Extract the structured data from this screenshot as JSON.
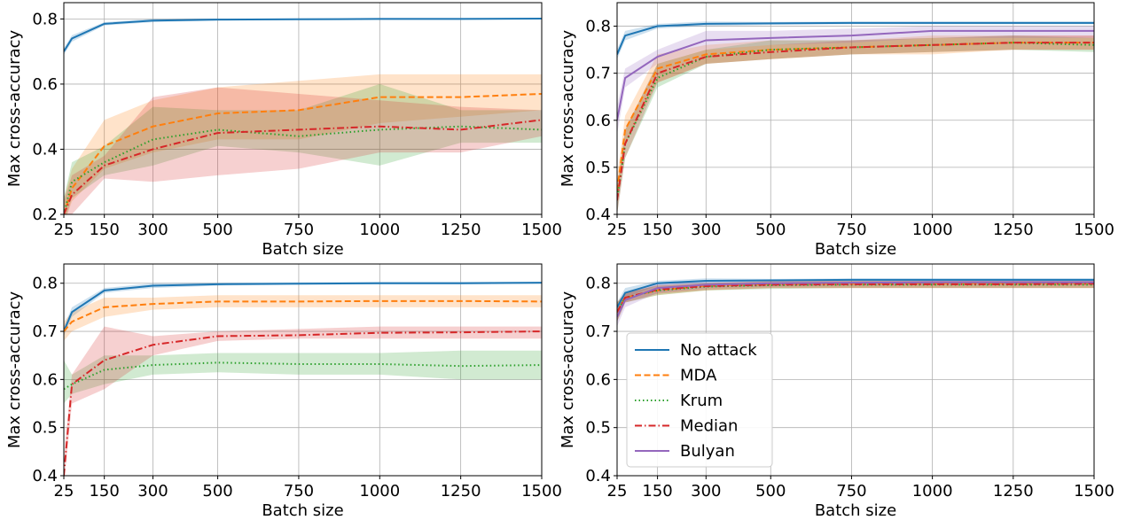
{
  "chart_data": [
    {
      "type": "line",
      "xlabel": "Batch size",
      "ylabel": "Max cross-accuracy",
      "xlim": [
        25,
        1500
      ],
      "ylim": [
        0.2,
        0.85
      ],
      "xticks": [
        25,
        150,
        300,
        500,
        750,
        1000,
        1250,
        1500
      ],
      "yticks": [
        0.2,
        0.4,
        0.6,
        0.8
      ],
      "ytick_labels": [
        "0.2",
        "0.4",
        "0.6",
        "0.8"
      ],
      "grid": true,
      "x": [
        25,
        50,
        150,
        300,
        500,
        750,
        1000,
        1250,
        1500
      ],
      "series": [
        {
          "name": "No attack",
          "values": [
            0.7,
            0.74,
            0.785,
            0.795,
            0.798,
            0.799,
            0.8,
            0.8,
            0.801
          ],
          "lower": [
            0.69,
            0.73,
            0.78,
            0.79,
            0.795,
            0.797,
            0.798,
            0.798,
            0.799
          ],
          "upper": [
            0.71,
            0.75,
            0.79,
            0.8,
            0.801,
            0.802,
            0.803,
            0.803,
            0.803
          ]
        },
        {
          "name": "MDA",
          "values": [
            0.2,
            0.28,
            0.41,
            0.47,
            0.51,
            0.52,
            0.56,
            0.56,
            0.57
          ],
          "lower": [
            0.17,
            0.24,
            0.34,
            0.39,
            0.43,
            0.43,
            0.48,
            0.5,
            0.52
          ],
          "upper": [
            0.25,
            0.34,
            0.49,
            0.55,
            0.59,
            0.61,
            0.63,
            0.63,
            0.63
          ]
        },
        {
          "name": "Krum",
          "values": [
            0.2,
            0.3,
            0.36,
            0.43,
            0.46,
            0.44,
            0.46,
            0.47,
            0.46
          ],
          "lower": [
            0.17,
            0.25,
            0.32,
            0.35,
            0.41,
            0.39,
            0.35,
            0.42,
            0.42
          ],
          "upper": [
            0.25,
            0.36,
            0.41,
            0.53,
            0.52,
            0.52,
            0.6,
            0.52,
            0.52
          ]
        },
        {
          "name": "Median",
          "values": [
            0.2,
            0.26,
            0.35,
            0.4,
            0.45,
            0.46,
            0.47,
            0.46,
            0.49
          ],
          "lower": [
            0.17,
            0.2,
            0.31,
            0.3,
            0.32,
            0.34,
            0.39,
            0.39,
            0.44
          ],
          "upper": [
            0.24,
            0.32,
            0.38,
            0.56,
            0.59,
            0.57,
            0.55,
            0.53,
            0.52
          ]
        }
      ]
    },
    {
      "type": "line",
      "xlabel": "Batch size",
      "ylabel": "Max cross-accuracy",
      "xlim": [
        25,
        1500
      ],
      "ylim": [
        0.4,
        0.85
      ],
      "xticks": [
        25,
        150,
        300,
        500,
        750,
        1000,
        1250,
        1500
      ],
      "yticks": [
        0.4,
        0.5,
        0.6,
        0.7,
        0.8
      ],
      "ytick_labels": [
        "0.4",
        "0.5",
        "0.6",
        "0.7",
        "0.8"
      ],
      "grid": true,
      "x": [
        25,
        50,
        150,
        300,
        500,
        750,
        1000,
        1250,
        1500
      ],
      "series": [
        {
          "name": "No attack",
          "values": [
            0.74,
            0.78,
            0.8,
            0.805,
            0.806,
            0.807,
            0.807,
            0.807,
            0.807
          ],
          "lower": [
            0.73,
            0.77,
            0.795,
            0.8,
            0.803,
            0.804,
            0.804,
            0.804,
            0.804
          ],
          "upper": [
            0.75,
            0.79,
            0.805,
            0.81,
            0.809,
            0.81,
            0.81,
            0.81,
            0.81
          ]
        },
        {
          "name": "MDA",
          "values": [
            0.45,
            0.58,
            0.71,
            0.74,
            0.75,
            0.755,
            0.76,
            0.765,
            0.765
          ],
          "lower": [
            0.42,
            0.55,
            0.68,
            0.72,
            0.73,
            0.74,
            0.74,
            0.75,
            0.75
          ],
          "upper": [
            0.48,
            0.61,
            0.74,
            0.76,
            0.77,
            0.77,
            0.78,
            0.78,
            0.78
          ]
        },
        {
          "name": "Krum",
          "values": [
            0.43,
            0.55,
            0.69,
            0.735,
            0.75,
            0.755,
            0.76,
            0.765,
            0.76
          ],
          "lower": [
            0.4,
            0.52,
            0.67,
            0.72,
            0.73,
            0.74,
            0.745,
            0.75,
            0.745
          ],
          "upper": [
            0.46,
            0.58,
            0.72,
            0.75,
            0.77,
            0.77,
            0.775,
            0.78,
            0.775
          ]
        },
        {
          "name": "Median",
          "values": [
            0.43,
            0.55,
            0.7,
            0.735,
            0.745,
            0.755,
            0.76,
            0.765,
            0.765
          ],
          "lower": [
            0.4,
            0.52,
            0.68,
            0.72,
            0.73,
            0.74,
            0.745,
            0.75,
            0.75
          ],
          "upper": [
            0.46,
            0.58,
            0.72,
            0.75,
            0.76,
            0.77,
            0.775,
            0.78,
            0.78
          ]
        },
        {
          "name": "Bulyan",
          "values": [
            0.6,
            0.69,
            0.735,
            0.77,
            0.775,
            0.78,
            0.79,
            0.79,
            0.79
          ],
          "lower": [
            0.57,
            0.67,
            0.72,
            0.75,
            0.76,
            0.765,
            0.775,
            0.775,
            0.775
          ],
          "upper": [
            0.63,
            0.71,
            0.75,
            0.79,
            0.79,
            0.795,
            0.8,
            0.8,
            0.8
          ]
        }
      ]
    },
    {
      "type": "line",
      "xlabel": "Batch size",
      "ylabel": "Max cross-accuracy",
      "xlim": [
        25,
        1500
      ],
      "ylim": [
        0.4,
        0.84
      ],
      "xticks": [
        25,
        150,
        300,
        500,
        750,
        1000,
        1250,
        1500
      ],
      "yticks": [
        0.4,
        0.5,
        0.6,
        0.7,
        0.8
      ],
      "ytick_labels": [
        "0.4",
        "0.5",
        "0.6",
        "0.7",
        "0.8"
      ],
      "grid": true,
      "x": [
        25,
        50,
        150,
        300,
        500,
        750,
        1000,
        1250,
        1500
      ],
      "series": [
        {
          "name": "No attack",
          "values": [
            0.7,
            0.74,
            0.785,
            0.795,
            0.798,
            0.799,
            0.8,
            0.8,
            0.801
          ],
          "lower": [
            0.69,
            0.73,
            0.78,
            0.79,
            0.795,
            0.797,
            0.798,
            0.798,
            0.799
          ],
          "upper": [
            0.71,
            0.75,
            0.79,
            0.8,
            0.801,
            0.802,
            0.803,
            0.803,
            0.803
          ]
        },
        {
          "name": "MDA",
          "values": [
            0.7,
            0.72,
            0.75,
            0.757,
            0.762,
            0.762,
            0.763,
            0.763,
            0.762
          ],
          "lower": [
            0.68,
            0.7,
            0.73,
            0.745,
            0.75,
            0.75,
            0.75,
            0.75,
            0.75
          ],
          "upper": [
            0.72,
            0.74,
            0.77,
            0.77,
            0.775,
            0.775,
            0.775,
            0.775,
            0.775
          ]
        },
        {
          "name": "Krum",
          "values": [
            0.58,
            0.59,
            0.62,
            0.63,
            0.635,
            0.632,
            0.632,
            0.628,
            0.63
          ],
          "lower": [
            0.55,
            0.57,
            0.59,
            0.61,
            0.615,
            0.61,
            0.61,
            0.6,
            0.6
          ],
          "upper": [
            0.64,
            0.61,
            0.65,
            0.65,
            0.655,
            0.655,
            0.655,
            0.66,
            0.66
          ]
        },
        {
          "name": "Median",
          "values": [
            0.4,
            0.59,
            0.64,
            0.672,
            0.69,
            0.692,
            0.697,
            0.698,
            0.7
          ],
          "lower": [
            0.38,
            0.55,
            0.58,
            0.65,
            0.68,
            0.685,
            0.685,
            0.685,
            0.685
          ],
          "upper": [
            0.44,
            0.61,
            0.71,
            0.69,
            0.7,
            0.705,
            0.71,
            0.71,
            0.71
          ]
        }
      ]
    },
    {
      "type": "line",
      "xlabel": "Batch size",
      "ylabel": "Max cross-accuracy",
      "xlim": [
        25,
        1500
      ],
      "ylim": [
        0.4,
        0.84
      ],
      "xticks": [
        25,
        150,
        300,
        500,
        750,
        1000,
        1250,
        1500
      ],
      "yticks": [
        0.4,
        0.5,
        0.6,
        0.7,
        0.8
      ],
      "ytick_labels": [
        "0.4",
        "0.5",
        "0.6",
        "0.7",
        "0.8"
      ],
      "grid": true,
      "legend": "lower-left",
      "x": [
        25,
        50,
        150,
        300,
        500,
        750,
        1000,
        1250,
        1500
      ],
      "series": [
        {
          "name": "No attack",
          "values": [
            0.75,
            0.78,
            0.8,
            0.805,
            0.806,
            0.807,
            0.807,
            0.807,
            0.807
          ],
          "lower": [
            0.74,
            0.77,
            0.795,
            0.8,
            0.803,
            0.804,
            0.804,
            0.804,
            0.804
          ],
          "upper": [
            0.76,
            0.79,
            0.805,
            0.81,
            0.809,
            0.81,
            0.81,
            0.81,
            0.81
          ]
        },
        {
          "name": "MDA",
          "values": [
            0.74,
            0.77,
            0.785,
            0.795,
            0.798,
            0.799,
            0.8,
            0.8,
            0.8
          ],
          "lower": [
            0.72,
            0.76,
            0.775,
            0.785,
            0.79,
            0.79,
            0.79,
            0.79,
            0.79
          ],
          "upper": [
            0.76,
            0.78,
            0.795,
            0.8,
            0.805,
            0.805,
            0.805,
            0.805,
            0.805
          ]
        },
        {
          "name": "Krum",
          "values": [
            0.74,
            0.77,
            0.785,
            0.793,
            0.796,
            0.797,
            0.797,
            0.797,
            0.797
          ],
          "lower": [
            0.72,
            0.76,
            0.775,
            0.785,
            0.788,
            0.79,
            0.79,
            0.79,
            0.79
          ],
          "upper": [
            0.76,
            0.78,
            0.795,
            0.8,
            0.803,
            0.804,
            0.804,
            0.804,
            0.804
          ]
        },
        {
          "name": "Median",
          "values": [
            0.74,
            0.77,
            0.787,
            0.794,
            0.797,
            0.798,
            0.798,
            0.798,
            0.799
          ],
          "lower": [
            0.72,
            0.76,
            0.778,
            0.786,
            0.79,
            0.79,
            0.79,
            0.79,
            0.79
          ],
          "upper": [
            0.76,
            0.78,
            0.796,
            0.8,
            0.804,
            0.805,
            0.805,
            0.805,
            0.805
          ]
        },
        {
          "name": "Bulyan",
          "values": [
            0.73,
            0.765,
            0.79,
            0.797,
            0.8,
            0.801,
            0.802,
            0.802,
            0.802
          ],
          "lower": [
            0.71,
            0.75,
            0.78,
            0.79,
            0.793,
            0.795,
            0.796,
            0.796,
            0.796
          ],
          "upper": [
            0.75,
            0.78,
            0.8,
            0.805,
            0.807,
            0.808,
            0.808,
            0.808,
            0.808
          ]
        }
      ]
    }
  ],
  "series_styles": {
    "No attack": {
      "color": "#1f77b4",
      "dash": "solid"
    },
    "MDA": {
      "color": "#ff7f0e",
      "dash": "dashed"
    },
    "Krum": {
      "color": "#2ca02c",
      "dash": "dotted"
    },
    "Median": {
      "color": "#d62728",
      "dash": "dashdot"
    },
    "Bulyan": {
      "color": "#9467bd",
      "dash": "solid"
    }
  },
  "legend": {
    "items": [
      "No attack",
      "MDA",
      "Krum",
      "Median",
      "Bulyan"
    ]
  }
}
